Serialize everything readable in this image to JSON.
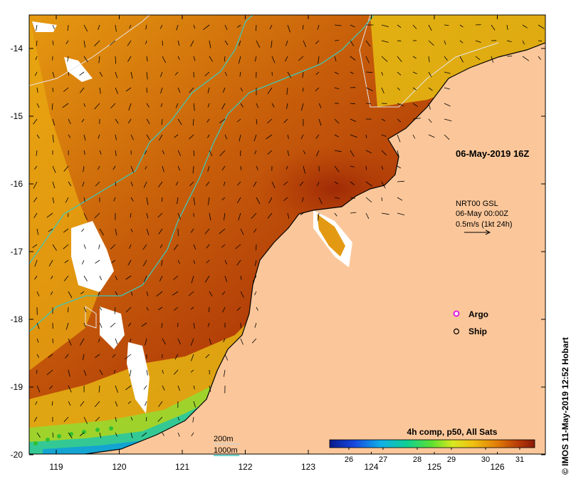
{
  "timestamp": "06-May-2019 16Z",
  "current_info": {
    "line1": "NRT00 GSL",
    "line2": "06-May 00:00Z",
    "line3": "0.5m/s (1kt 24h)"
  },
  "legend": {
    "argo_label": "Argo",
    "ship_label": "Ship",
    "depth_200": "200m",
    "depth_1000": "1000m"
  },
  "colorbar": {
    "title": "4h comp, p50, All Sats",
    "ticks": [
      "26",
      "27",
      "28",
      "29",
      "30",
      "31"
    ]
  },
  "copyright": "© IMOS 11-May-2019 12:52 Hobart",
  "axes": {
    "x_ticks": [
      "119",
      "120",
      "121",
      "122",
      "123",
      "124",
      "125",
      "126"
    ],
    "y_ticks": [
      "-14",
      "-15",
      "-16",
      "-17",
      "-18",
      "-19",
      "-20"
    ]
  },
  "colors": {
    "land": "#fbc79a",
    "isobath_200": "#c8c8c8",
    "isobath_1000": "#3fc7b8",
    "argo": "#e020e0"
  }
}
